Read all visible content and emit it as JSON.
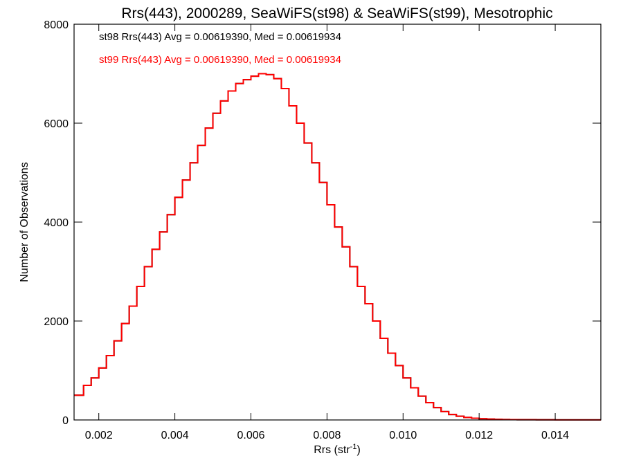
{
  "chart_data": {
    "type": "line",
    "style": "step",
    "title": "Rrs(443), 2000289, SeaWiFS(st98) & SeaWiFS(st99), Mesotrophic",
    "xlabel": "Rrs (str",
    "xlabel_sup": "-1",
    "xlabel_suffix": ")",
    "ylabel": "Number of Observations",
    "xlim": [
      0.00135,
      0.0152
    ],
    "ylim": [
      0,
      8000
    ],
    "x_ticks": [
      0.002,
      0.004,
      0.006,
      0.008,
      0.01,
      0.012,
      0.014
    ],
    "x_tick_labels": [
      "0.002",
      "0.004",
      "0.006",
      "0.008",
      "0.010",
      "0.012",
      "0.014"
    ],
    "y_ticks": [
      0,
      2000,
      4000,
      6000,
      8000
    ],
    "y_tick_labels": [
      "0",
      "2000",
      "4000",
      "6000",
      "8000"
    ],
    "grid": false,
    "legend_placement": "top-left",
    "annotations": [
      {
        "text": "st98 Rrs(443) Avg = 0.00619390, Med = 0.00619934",
        "color": "#000000"
      },
      {
        "text": "st99 Rrs(443) Avg = 0.00619390, Med = 0.00619934",
        "color": "#ff0000"
      }
    ],
    "series": [
      {
        "color": "#000000",
        "x": [
          0.00135,
          0.0016,
          0.0018,
          0.002,
          0.0022,
          0.0024,
          0.0026,
          0.0028,
          0.003,
          0.0032,
          0.0034,
          0.0036,
          0.0038,
          0.004,
          0.0042,
          0.0044,
          0.0046,
          0.0048,
          0.005,
          0.0052,
          0.0054,
          0.0056,
          0.0058,
          0.006,
          0.0062,
          0.0064,
          0.0066,
          0.0068,
          0.007,
          0.0072,
          0.0074,
          0.0076,
          0.0078,
          0.008,
          0.0082,
          0.0084,
          0.0086,
          0.0088,
          0.009,
          0.0092,
          0.0094,
          0.0096,
          0.0098,
          0.01,
          0.0102,
          0.0104,
          0.0106,
          0.0108,
          0.011,
          0.0112,
          0.0114,
          0.0116,
          0.0118,
          0.012,
          0.0122,
          0.0124,
          0.0126,
          0.0128,
          0.013,
          0.0135,
          0.014,
          0.0145,
          0.015,
          0.0152
        ],
        "values": [
          500,
          700,
          850,
          1050,
          1300,
          1600,
          1950,
          2300,
          2700,
          3100,
          3450,
          3800,
          4150,
          4500,
          4850,
          5200,
          5550,
          5900,
          6200,
          6450,
          6650,
          6800,
          6880,
          6950,
          7000,
          6980,
          6900,
          6700,
          6350,
          6000,
          5600,
          5200,
          4800,
          4350,
          3900,
          3500,
          3100,
          2700,
          2350,
          2000,
          1650,
          1350,
          1100,
          850,
          650,
          480,
          350,
          250,
          170,
          110,
          75,
          50,
          35,
          25,
          18,
          12,
          9,
          7,
          5,
          3,
          2,
          1,
          1,
          1
        ]
      },
      {
        "color": "#ff0000",
        "x": [
          0.00135,
          0.0016,
          0.0018,
          0.002,
          0.0022,
          0.0024,
          0.0026,
          0.0028,
          0.003,
          0.0032,
          0.0034,
          0.0036,
          0.0038,
          0.004,
          0.0042,
          0.0044,
          0.0046,
          0.0048,
          0.005,
          0.0052,
          0.0054,
          0.0056,
          0.0058,
          0.006,
          0.0062,
          0.0064,
          0.0066,
          0.0068,
          0.007,
          0.0072,
          0.0074,
          0.0076,
          0.0078,
          0.008,
          0.0082,
          0.0084,
          0.0086,
          0.0088,
          0.009,
          0.0092,
          0.0094,
          0.0096,
          0.0098,
          0.01,
          0.0102,
          0.0104,
          0.0106,
          0.0108,
          0.011,
          0.0112,
          0.0114,
          0.0116,
          0.0118,
          0.012,
          0.0122,
          0.0124,
          0.0126,
          0.0128,
          0.013,
          0.0135,
          0.014,
          0.0145,
          0.015,
          0.0152
        ],
        "values": [
          500,
          700,
          850,
          1050,
          1300,
          1600,
          1950,
          2300,
          2700,
          3100,
          3450,
          3800,
          4150,
          4500,
          4850,
          5200,
          5550,
          5900,
          6200,
          6450,
          6650,
          6800,
          6880,
          6950,
          7000,
          6980,
          6900,
          6700,
          6350,
          6000,
          5600,
          5200,
          4800,
          4350,
          3900,
          3500,
          3100,
          2700,
          2350,
          2000,
          1650,
          1350,
          1100,
          850,
          650,
          480,
          350,
          250,
          170,
          110,
          75,
          50,
          35,
          25,
          18,
          12,
          9,
          7,
          5,
          3,
          2,
          1,
          1,
          1
        ]
      }
    ]
  }
}
